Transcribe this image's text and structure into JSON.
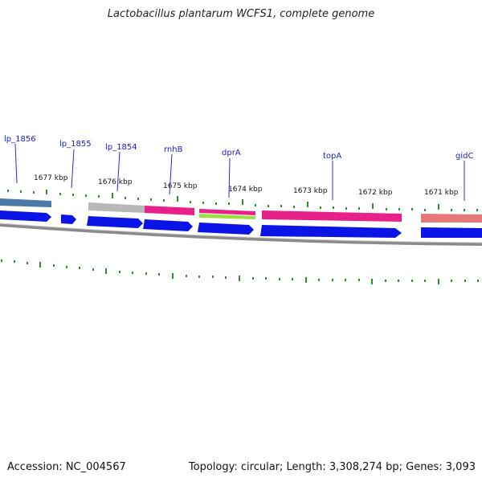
{
  "title": "Lactobacillus plantarum WCFS1, complete genome",
  "footer": {
    "accession": "Accession: NC_004567",
    "topology": "Topology: circular; Length: 3,308,274 bp; Genes: 3,093"
  },
  "kbp_labels": [
    "1677 kbp",
    "1676 kbp",
    "1675 kbp",
    "1674 kbp",
    "1673 kbp",
    "1672 kbp",
    "1671 kbp"
  ],
  "gene_labels": [
    "lp_1856",
    "lp_1855",
    "lp_1854",
    "rnhB",
    "dprA",
    "topA",
    "gidC"
  ],
  "colors": {
    "cds_arrow": "#0a14e6",
    "backbone": "#7a7a7a",
    "tick": "#2e8b2e",
    "label_line": "#2a2ad0",
    "feature_blue_gray": "#4a7aa8",
    "feature_gray": "#b8b8b8",
    "feature_magenta": "#e8208a",
    "feature_green": "#9ae040",
    "feature_salmon": "#e87878"
  }
}
